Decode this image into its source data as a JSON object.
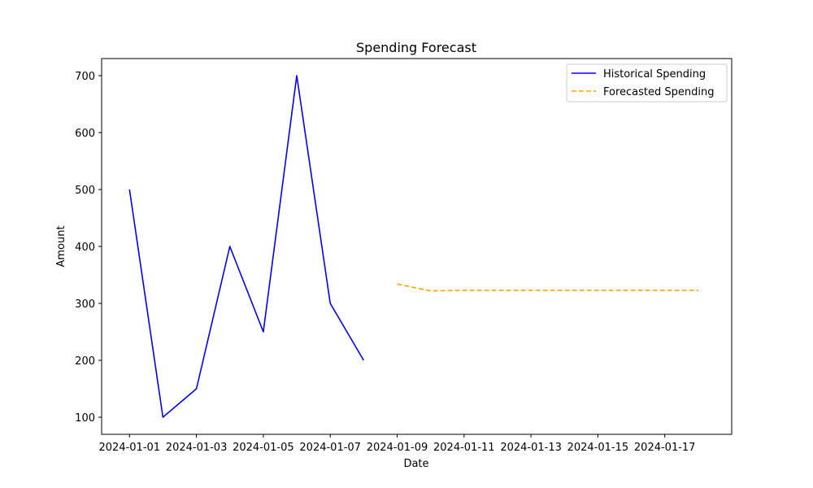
{
  "chart_data": {
    "type": "line",
    "title": "Spending Forecast",
    "xlabel": "Date",
    "ylabel": "Amount",
    "xlim": [
      "2023-12-31T04:00",
      "2024-01-19T00:00"
    ],
    "ylim": [
      70,
      730
    ],
    "x_ticks": [
      "2024-01-01",
      "2024-01-03",
      "2024-01-05",
      "2024-01-07",
      "2024-01-09",
      "2024-01-11",
      "2024-01-13",
      "2024-01-15",
      "2024-01-17"
    ],
    "y_ticks": [
      100,
      200,
      300,
      400,
      500,
      600,
      700
    ],
    "grid": false,
    "legend_position": "top-right",
    "series": [
      {
        "name": "Historical Spending",
        "color": "#0000ff",
        "style": "solid",
        "x": [
          "2024-01-01",
          "2024-01-02",
          "2024-01-03",
          "2024-01-04",
          "2024-01-05",
          "2024-01-06",
          "2024-01-07",
          "2024-01-08"
        ],
        "values": [
          500,
          100,
          150,
          400,
          250,
          700,
          300,
          200
        ]
      },
      {
        "name": "Forecasted Spending",
        "color": "#ffa500",
        "style": "dashed",
        "x": [
          "2024-01-09",
          "2024-01-10",
          "2024-01-11",
          "2024-01-12",
          "2024-01-13",
          "2024-01-14",
          "2024-01-15",
          "2024-01-16",
          "2024-01-17",
          "2024-01-18"
        ],
        "values": [
          334,
          322,
          323,
          323,
          323,
          323,
          323,
          323,
          323,
          323
        ]
      }
    ]
  }
}
